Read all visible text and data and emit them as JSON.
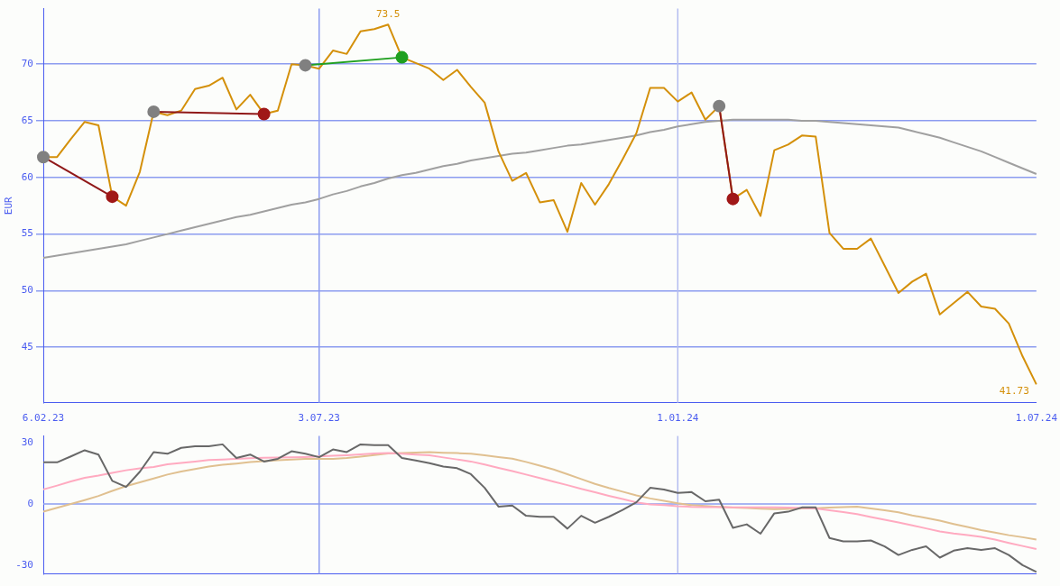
{
  "chart_data": [
    {
      "type": "line",
      "ylabel": "EUR",
      "categories": [
        "6.02.23",
        null,
        null,
        null,
        null,
        null,
        null,
        null,
        null,
        null,
        null,
        null,
        null,
        null,
        null,
        null,
        null,
        null,
        null,
        null,
        "3.07.23",
        null,
        null,
        null,
        null,
        null,
        null,
        null,
        null,
        null,
        null,
        null,
        null,
        null,
        null,
        null,
        null,
        null,
        null,
        null,
        null,
        null,
        null,
        null,
        null,
        null,
        "1.01.24",
        null,
        null,
        null,
        null,
        null,
        null,
        null,
        null,
        null,
        null,
        null,
        null,
        null,
        null,
        null,
        null,
        null,
        null,
        null,
        null,
        null,
        null,
        null,
        null,
        null,
        "1.07.24"
      ],
      "ylim": [
        40.1,
        74.9
      ],
      "yticks": [
        45,
        50,
        55,
        60,
        65,
        70
      ],
      "grid": "y",
      "legend": false,
      "marker": "none",
      "ref_lines": [
        {
          "axis": "x",
          "value": "3.07.23",
          "color": "#8c9cf0"
        },
        {
          "axis": "x",
          "value": "1.01.24",
          "color": "#b4bcf0"
        }
      ],
      "series": [
        {
          "type": "line",
          "color": "#a0a0a0",
          "values": [
            52.9,
            53.1,
            53.3,
            53.5,
            53.7,
            53.9,
            54.1,
            54.4,
            54.7,
            55.0,
            55.3,
            55.6,
            55.9,
            56.2,
            56.5,
            56.7,
            57.0,
            57.3,
            57.6,
            57.8,
            58.1,
            58.5,
            58.8,
            59.2,
            59.5,
            59.9,
            60.2,
            60.4,
            60.7,
            61.0,
            61.2,
            61.5,
            61.7,
            61.9,
            62.1,
            62.2,
            62.4,
            62.6,
            62.8,
            62.9,
            63.1,
            63.3,
            63.5,
            63.7,
            64.0,
            64.2,
            64.5,
            64.7,
            64.9,
            65.0,
            65.1,
            65.1,
            65.1,
            65.1,
            65.1,
            65.0,
            65.0,
            64.9,
            64.8,
            64.7,
            64.6,
            64.5,
            64.4,
            64.1,
            63.8,
            63.5,
            63.1,
            62.7,
            62.3,
            61.8,
            61.3,
            60.8,
            60.3
          ]
        },
        {
          "type": "line",
          "color": "#d4900a",
          "values": [
            61.8,
            61.8,
            63.4,
            64.9,
            64.6,
            58.3,
            57.5,
            60.5,
            65.8,
            65.5,
            65.9,
            67.8,
            68.1,
            68.8,
            66.0,
            67.3,
            65.6,
            65.9,
            70.0,
            69.9,
            69.6,
            71.2,
            70.9,
            72.9,
            73.1,
            73.5,
            70.6,
            70.1,
            69.6,
            68.6,
            69.5,
            68.0,
            66.6,
            62.3,
            59.7,
            60.4,
            57.8,
            58.0,
            55.2,
            59.5,
            57.6,
            59.4,
            61.6,
            63.9,
            67.9,
            67.9,
            66.7,
            67.5,
            65.1,
            66.3,
            58.1,
            58.9,
            56.6,
            62.4,
            62.9,
            63.7,
            63.6,
            55.1,
            53.7,
            53.7,
            54.6,
            52.2,
            49.8,
            50.8,
            51.5,
            47.9,
            48.9,
            49.9,
            48.6,
            48.4,
            47.1,
            44.2,
            41.73
          ],
          "value_labels": [
            null,
            null,
            null,
            null,
            null,
            null,
            null,
            null,
            null,
            null,
            null,
            null,
            null,
            null,
            null,
            null,
            null,
            null,
            null,
            null,
            null,
            null,
            null,
            null,
            null,
            "73.5",
            null,
            null,
            null,
            null,
            null,
            null,
            null,
            null,
            null,
            null,
            null,
            null,
            null,
            null,
            null,
            null,
            null,
            null,
            null,
            null,
            null,
            null,
            null,
            null,
            null,
            null,
            null,
            null,
            null,
            null,
            null,
            null,
            null,
            null,
            null,
            null,
            null,
            null,
            null,
            null,
            null,
            null,
            null,
            null,
            null,
            null,
            "41.73"
          ]
        },
        {
          "type": "line",
          "color": "#901818",
          "values": [
            61.8,
            null,
            null,
            null,
            null,
            58.3,
            null,
            null,
            null,
            null,
            null,
            null,
            null,
            null,
            null,
            null,
            null,
            null,
            null,
            null,
            null,
            null,
            null,
            null,
            null,
            null,
            null,
            null,
            null,
            null,
            null,
            null,
            null,
            null,
            null,
            null,
            null,
            null,
            null,
            null,
            null,
            null,
            null,
            null,
            null,
            null,
            null,
            null,
            null,
            null,
            null,
            null,
            null,
            null,
            null,
            null,
            null,
            null,
            null,
            null,
            null,
            null,
            null,
            null,
            null,
            null,
            null,
            null,
            null,
            null,
            null,
            null,
            null
          ]
        },
        {
          "type": "line",
          "color": "#901818",
          "values": [
            null,
            null,
            null,
            null,
            null,
            null,
            null,
            null,
            65.8,
            null,
            null,
            null,
            null,
            null,
            null,
            null,
            65.6,
            null,
            null,
            null,
            null,
            null,
            null,
            null,
            null,
            null,
            null,
            null,
            null,
            null,
            null,
            null,
            null,
            null,
            null,
            null,
            null,
            null,
            null,
            null,
            null,
            null,
            null,
            null,
            null,
            null,
            null,
            null,
            null,
            null,
            null,
            null,
            null,
            null,
            null,
            null,
            null,
            null,
            null,
            null,
            null,
            null,
            null,
            null,
            null,
            null,
            null,
            null,
            null,
            null,
            null,
            null,
            null
          ]
        },
        {
          "type": "line",
          "color": "#20a020",
          "values": [
            null,
            null,
            null,
            null,
            null,
            null,
            null,
            null,
            null,
            null,
            null,
            null,
            null,
            null,
            null,
            null,
            null,
            null,
            null,
            69.9,
            null,
            null,
            null,
            null,
            null,
            null,
            70.6,
            null,
            null,
            null,
            null,
            null,
            null,
            null,
            null,
            null,
            null,
            null,
            null,
            null,
            null,
            null,
            null,
            null,
            null,
            null,
            null,
            null,
            null,
            null,
            null,
            null,
            null,
            null,
            null,
            null,
            null,
            null,
            null,
            null,
            null,
            null,
            null,
            null,
            null,
            null,
            null,
            null,
            null,
            null,
            null,
            null,
            null
          ]
        },
        {
          "type": "line",
          "color": "#901818",
          "values": [
            null,
            null,
            null,
            null,
            null,
            null,
            null,
            null,
            null,
            null,
            null,
            null,
            null,
            null,
            null,
            null,
            null,
            null,
            null,
            null,
            null,
            null,
            null,
            null,
            null,
            null,
            null,
            null,
            null,
            null,
            null,
            null,
            null,
            null,
            null,
            null,
            null,
            null,
            null,
            null,
            null,
            null,
            null,
            null,
            null,
            null,
            null,
            null,
            null,
            66.3,
            58.1,
            null,
            null,
            null,
            null,
            null,
            null,
            null,
            null,
            null,
            null,
            null,
            null,
            null,
            null,
            null,
            null,
            null,
            null,
            null,
            null,
            null,
            null
          ]
        },
        {
          "type": "scatter",
          "color": "#808080",
          "marker": "circle",
          "values": [
            61.8,
            null,
            null,
            null,
            null,
            null,
            null,
            null,
            65.8,
            null,
            null,
            null,
            null,
            null,
            null,
            null,
            null,
            null,
            null,
            69.9,
            null,
            null,
            null,
            null,
            null,
            null,
            null,
            null,
            null,
            null,
            null,
            null,
            null,
            null,
            null,
            null,
            null,
            null,
            null,
            null,
            null,
            null,
            null,
            null,
            null,
            null,
            null,
            null,
            null,
            66.3,
            null,
            null,
            null,
            null,
            null,
            null,
            null,
            null,
            null,
            null,
            null,
            null,
            null,
            null,
            null,
            null,
            null,
            null,
            null,
            null,
            null,
            null,
            null
          ]
        },
        {
          "type": "scatter",
          "color": "#a01818",
          "marker": "circle",
          "values": [
            null,
            null,
            null,
            null,
            null,
            58.3,
            null,
            null,
            null,
            null,
            null,
            null,
            null,
            null,
            null,
            null,
            65.6,
            null,
            null,
            null,
            null,
            null,
            null,
            null,
            null,
            null,
            null,
            null,
            null,
            null,
            null,
            null,
            null,
            null,
            null,
            null,
            null,
            null,
            null,
            null,
            null,
            null,
            null,
            null,
            null,
            null,
            null,
            null,
            null,
            null,
            58.1,
            null,
            null,
            null,
            null,
            null,
            null,
            null,
            null,
            null,
            null,
            null,
            null,
            null,
            null,
            null,
            null,
            null,
            null,
            null,
            null,
            null,
            null
          ]
        },
        {
          "type": "scatter",
          "color": "#20a020",
          "marker": "circle",
          "values": [
            null,
            null,
            null,
            null,
            null,
            null,
            null,
            null,
            null,
            null,
            null,
            null,
            null,
            null,
            null,
            null,
            null,
            null,
            null,
            null,
            null,
            null,
            null,
            null,
            null,
            null,
            70.6,
            null,
            null,
            null,
            null,
            null,
            null,
            null,
            null,
            null,
            null,
            null,
            null,
            null,
            null,
            null,
            null,
            null,
            null,
            null,
            null,
            null,
            null,
            null,
            null,
            null,
            null,
            null,
            null,
            null,
            null,
            null,
            null,
            null,
            null,
            null,
            null,
            null,
            null,
            null,
            null,
            null,
            null,
            null,
            null,
            null,
            null
          ]
        }
      ]
    },
    {
      "type": "line",
      "tick_labels": "y",
      "categories": [
        "6.02.23",
        null,
        null,
        null,
        null,
        null,
        null,
        null,
        null,
        null,
        null,
        null,
        null,
        null,
        null,
        null,
        null,
        null,
        null,
        null,
        "3.07.23",
        null,
        null,
        null,
        null,
        null,
        null,
        null,
        null,
        null,
        null,
        null,
        null,
        null,
        null,
        null,
        null,
        null,
        null,
        null,
        null,
        null,
        null,
        null,
        null,
        null,
        "1.01.24",
        null,
        null,
        null,
        null,
        null,
        null,
        null,
        null,
        null,
        null,
        null,
        null,
        null,
        null,
        null,
        null,
        null,
        null,
        null,
        null,
        null,
        null,
        null,
        null,
        null,
        "1.07.24"
      ],
      "ylim": [
        -34.2,
        33.3
      ],
      "yticks": [
        -30,
        0,
        30
      ],
      "grid": false,
      "legend": false,
      "marker": "none",
      "ref_lines": [
        {
          "axis": "y",
          "value": 0,
          "color": "#8c9cf0"
        },
        {
          "axis": "x",
          "value": "3.07.23",
          "color": "#8c9cf0"
        },
        {
          "axis": "x",
          "value": "1.01.24",
          "color": "#b4bcf0"
        }
      ],
      "series": [
        {
          "type": "line",
          "color": "#e0c090",
          "values": [
            -3.8,
            -1.9,
            0.0,
            1.9,
            3.9,
            6.4,
            8.7,
            10.6,
            12.5,
            14.4,
            15.9,
            17.1,
            18.3,
            19.2,
            19.8,
            20.5,
            21.0,
            21.4,
            21.8,
            22.1,
            22.1,
            22.1,
            22.5,
            23.2,
            24.0,
            24.7,
            24.9,
            25.2,
            25.4,
            25.1,
            24.9,
            24.6,
            23.8,
            23.0,
            22.2,
            20.6,
            18.8,
            16.9,
            14.6,
            12.2,
            9.8,
            7.8,
            6.0,
            4.2,
            2.7,
            1.5,
            0.3,
            -0.6,
            -1.0,
            -1.4,
            -1.8,
            -2.0,
            -2.3,
            -2.5,
            -2.4,
            -2.2,
            -2.1,
            -1.8,
            -1.5,
            -1.3,
            -2.2,
            -3.1,
            -4.1,
            -5.6,
            -6.9,
            -8.2,
            -9.8,
            -11.3,
            -12.8,
            -14.0,
            -15.3,
            -16.3,
            -17.5
          ]
        },
        {
          "type": "line",
          "color": "#ffaac0",
          "values": [
            7.1,
            9.0,
            11.0,
            12.8,
            13.9,
            15.2,
            16.5,
            17.4,
            18.1,
            19.4,
            20.1,
            20.8,
            21.5,
            21.8,
            22.1,
            22.4,
            22.6,
            22.7,
            22.8,
            23.0,
            23.3,
            23.6,
            23.9,
            24.3,
            24.7,
            24.9,
            24.6,
            24.2,
            23.8,
            22.8,
            21.8,
            20.8,
            19.3,
            17.7,
            16.1,
            14.4,
            12.7,
            10.9,
            9.2,
            7.4,
            5.7,
            4.0,
            2.4,
            0.8,
            -0.2,
            -0.6,
            -1.1,
            -1.4,
            -1.5,
            -1.6,
            -1.7,
            -1.7,
            -1.7,
            -1.7,
            -1.8,
            -2.0,
            -2.2,
            -3.1,
            -4.0,
            -5.0,
            -6.4,
            -7.7,
            -9.1,
            -10.5,
            -12.0,
            -13.5,
            -14.5,
            -15.3,
            -16.1,
            -17.5,
            -19.1,
            -20.6,
            -22.1
          ]
        },
        {
          "type": "line",
          "color": "#686868",
          "values": [
            20.4,
            20.4,
            23.3,
            26.3,
            24.2,
            11.3,
            8.3,
            15.8,
            25.4,
            24.6,
            27.5,
            28.3,
            28.3,
            29.2,
            22.5,
            24.2,
            20.8,
            22.1,
            25.8,
            24.6,
            22.9,
            26.7,
            25.4,
            29.2,
            28.8,
            28.8,
            22.5,
            21.3,
            20,
            18.3,
            17.5,
            14.6,
            7.9,
            -1.3,
            -0.8,
            -5.8,
            -6.3,
            -6.3,
            -12.1,
            -5.8,
            -9.2,
            -6.3,
            -2.9,
            0.8,
            7.9,
            7.1,
            5.4,
            5.8,
            1.3,
            2.1,
            -11.7,
            -10,
            -14.6,
            -4.6,
            -3.8,
            -1.7,
            -1.7,
            -16.7,
            -18.3,
            -18.3,
            -17.9,
            -20.8,
            -25,
            -22.5,
            -20.8,
            -26.3,
            -22.9,
            -21.7,
            -22.5,
            -21.7,
            -25,
            -30,
            -33.3
          ]
        }
      ]
    }
  ]
}
